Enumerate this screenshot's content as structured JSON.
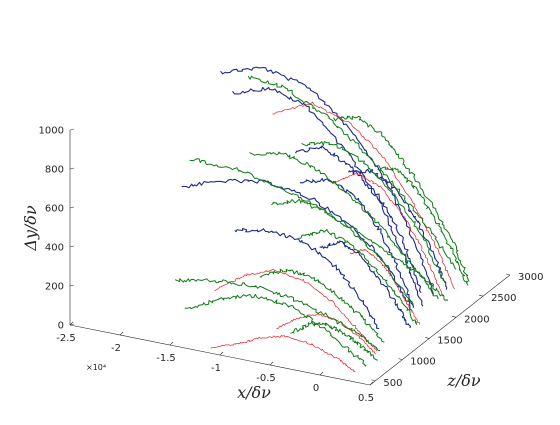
{
  "chart_data": {
    "type": "line",
    "view": "3d",
    "title": "",
    "xlabel": "x/δν",
    "ylabel": "Δy/δν",
    "zlabel": "z/δν",
    "x_multiplier_label": "×10⁴",
    "x_ticks": [
      "-2.5",
      "-2",
      "-1.5",
      "-1",
      "-0.5",
      "0",
      "0.5"
    ],
    "y_ticks": [
      "0",
      "200",
      "400",
      "600",
      "800",
      "1000"
    ],
    "z_ticks": [
      "500",
      "1000",
      "1500",
      "2000",
      "2500",
      "3000"
    ],
    "xlim": [
      -25000,
      5000
    ],
    "ylim": [
      0,
      1000
    ],
    "zlim": [
      400,
      3000
    ],
    "grid": false,
    "colors": {
      "blue_series": "#1c2a8c",
      "red_series": "#e0202a",
      "green_series": "#0e7d14"
    },
    "series": [
      {
        "color": "blue",
        "x": [
          -20500,
          -16000,
          -11000,
          -6500,
          -2500,
          500,
          2500
        ],
        "y": [
          920,
          1000,
          960,
          800,
          560,
          300,
          80
        ],
        "z": [
          2350,
          2300,
          2250,
          2200,
          2150,
          2100,
          2050
        ]
      },
      {
        "color": "blue",
        "x": [
          -17500,
          -13500,
          -9500,
          -5500,
          -2000,
          600,
          2600
        ],
        "y": [
          920,
          990,
          940,
          760,
          540,
          290,
          70
        ],
        "z": [
          2000,
          1980,
          1950,
          1920,
          1890,
          1860,
          1830
        ]
      },
      {
        "color": "blue",
        "x": [
          -21500,
          -17000,
          -12500,
          -8000,
          -4000,
          -500,
          2000
        ],
        "y": [
          440,
          520,
          560,
          520,
          420,
          260,
          60
        ],
        "z": [
          1800,
          1790,
          1780,
          1770,
          1760,
          1750,
          1740
        ]
      },
      {
        "color": "blue",
        "x": [
          -12000,
          -9000,
          -6000,
          -3000,
          -500,
          1500
        ],
        "y": [
          640,
          700,
          640,
          520,
          340,
          90
        ],
        "z": [
          2150,
          2120,
          2090,
          2060,
          2030,
          2000
        ]
      },
      {
        "color": "blue",
        "x": [
          -10000,
          -7000,
          -4500,
          -2000,
          0,
          1800
        ],
        "y": [
          560,
          610,
          560,
          430,
          260,
          60
        ],
        "z": [
          1900,
          1880,
          1860,
          1840,
          1820,
          1800
        ]
      },
      {
        "color": "blue",
        "x": [
          -14000,
          -10500,
          -7000,
          -4000,
          -1500,
          800
        ],
        "y": [
          380,
          420,
          400,
          320,
          200,
          40
        ],
        "z": [
          1400,
          1390,
          1380,
          1370,
          1360,
          1350
        ]
      },
      {
        "color": "blue",
        "x": [
          -8000,
          -5500,
          -3000,
          -1000,
          1000,
          2400
        ],
        "y": [
          520,
          560,
          500,
          380,
          220,
          50
        ],
        "z": [
          2400,
          2380,
          2360,
          2340,
          2320,
          2300
        ]
      },
      {
        "color": "blue",
        "x": [
          -6500,
          -4500,
          -2500,
          -500,
          1500,
          2800
        ],
        "y": [
          320,
          380,
          340,
          240,
          120,
          20
        ],
        "z": [
          1600,
          1590,
          1580,
          1570,
          1560,
          1550
        ]
      },
      {
        "color": "red",
        "x": [
          -16000,
          -12000,
          -8000,
          -4500,
          -1500,
          1000,
          2800
        ],
        "y": [
          720,
          820,
          760,
          620,
          420,
          220,
          40
        ],
        "z": [
          2500,
          2480,
          2460,
          2440,
          2420,
          2400,
          2380
        ]
      },
      {
        "color": "red",
        "x": [
          -14000,
          -11000,
          -8000,
          -5000,
          -2000,
          500,
          2500
        ],
        "y": [
          150,
          260,
          320,
          300,
          220,
          110,
          20
        ],
        "z": [
          1050,
          1040,
          1030,
          1020,
          1010,
          1000,
          990
        ]
      },
      {
        "color": "red",
        "x": [
          -11500,
          -9000,
          -6500,
          -4000,
          -1500,
          1000,
          2700
        ],
        "y": [
          0,
          40,
          100,
          130,
          110,
          60,
          10
        ],
        "z": [
          500,
          510,
          520,
          530,
          540,
          550,
          560
        ]
      },
      {
        "color": "red",
        "x": [
          -9000,
          -6500,
          -4000,
          -1500,
          800,
          2600
        ],
        "y": [
          480,
          560,
          520,
          400,
          220,
          40
        ],
        "z": [
          2300,
          2280,
          2260,
          2240,
          2220,
          2200
        ]
      },
      {
        "color": "red",
        "x": [
          -7000,
          -5000,
          -3000,
          -1000,
          1000,
          2600
        ],
        "y": [
          60,
          130,
          170,
          150,
          90,
          15
        ],
        "z": [
          900,
          910,
          920,
          930,
          940,
          950
        ]
      },
      {
        "color": "red",
        "x": [
          -4000,
          -2500,
          -1000,
          500,
          2000,
          3200
        ],
        "y": [
          300,
          340,
          300,
          220,
          110,
          20
        ],
        "z": [
          1700,
          1690,
          1680,
          1670,
          1660,
          1650
        ]
      },
      {
        "color": "green",
        "x": [
          -24500,
          -20000,
          -15500,
          -11000,
          -6500,
          -2500,
          1000,
          3000
        ],
        "y": [
          390,
          400,
          370,
          310,
          240,
          160,
          80,
          20
        ],
        "z": [
          2550,
          2500,
          2450,
          2400,
          2350,
          2300,
          2250,
          2200
        ]
      },
      {
        "color": "green",
        "x": [
          -21000,
          -17000,
          -13000,
          -9000,
          -5000,
          -1500,
          1500
        ],
        "y": [
          760,
          760,
          680,
          560,
          400,
          240,
          70
        ],
        "z": [
          2950,
          2900,
          2850,
          2800,
          2750,
          2700,
          2650
        ]
      },
      {
        "color": "green",
        "x": [
          -17000,
          -13500,
          -10000,
          -6500,
          -3000,
          0,
          2500
        ],
        "y": [
          560,
          600,
          560,
          460,
          320,
          170,
          40
        ],
        "z": [
          2250,
          2230,
          2210,
          2190,
          2170,
          2150,
          2130
        ]
      },
      {
        "color": "green",
        "x": [
          -19500,
          -15500,
          -11500,
          -7500,
          -3500,
          0,
          2500
        ],
        "y": [
          80,
          130,
          160,
          150,
          110,
          60,
          10
        ],
        "z": [
          1350,
          1300,
          1250,
          1200,
          1150,
          1100,
          1050
        ]
      },
      {
        "color": "green",
        "x": [
          -15000,
          -11500,
          -8000,
          -4500,
          -1500,
          1200,
          3000
        ],
        "y": [
          120,
          210,
          260,
          240,
          170,
          80,
          15
        ],
        "z": [
          700,
          700,
          700,
          700,
          700,
          700,
          700
        ]
      },
      {
        "color": "green",
        "x": [
          -12500,
          -9500,
          -6500,
          -3500,
          -500,
          2000
        ],
        "y": [
          620,
          660,
          600,
          480,
          300,
          70
        ],
        "z": [
          2400,
          2390,
          2380,
          2370,
          2360,
          2350
        ]
      },
      {
        "color": "green",
        "x": [
          -13000,
          -10000,
          -7000,
          -4000,
          -1000,
          1800
        ],
        "y": [
          420,
          470,
          440,
          360,
          240,
          60
        ],
        "z": [
          1900,
          1880,
          1860,
          1840,
          1820,
          1800
        ]
      },
      {
        "color": "green",
        "x": [
          -10000,
          -7500,
          -5000,
          -2500,
          0,
          2400
        ],
        "y": [
          240,
          300,
          290,
          230,
          140,
          30
        ],
        "z": [
          1150,
          1150,
          1150,
          1150,
          1150,
          1150
        ]
      },
      {
        "color": "green",
        "x": [
          -8500,
          -6000,
          -3500,
          -1000,
          1500,
          3200
        ],
        "y": [
          360,
          420,
          380,
          280,
          150,
          30
        ],
        "z": [
          1600,
          1600,
          1600,
          1600,
          1600,
          1600
        ]
      },
      {
        "color": "green",
        "x": [
          -6000,
          -4000,
          -2000,
          0,
          2000,
          3500
        ],
        "y": [
          520,
          540,
          460,
          340,
          180,
          40
        ],
        "z": [
          2600,
          2580,
          2560,
          2540,
          2520,
          2500
        ]
      },
      {
        "color": "green",
        "x": [
          -5000,
          -3200,
          -1500,
          200,
          1900,
          3300
        ],
        "y": [
          80,
          140,
          150,
          120,
          70,
          10
        ],
        "z": [
          800,
          810,
          820,
          830,
          840,
          850
        ]
      },
      {
        "color": "green",
        "x": [
          -11000,
          -8500,
          -6000,
          -3500,
          -1000,
          1500,
          3200
        ],
        "y": [
          700,
          740,
          680,
          560,
          400,
          220,
          40
        ],
        "z": [
          2700,
          2680,
          2660,
          2640,
          2620,
          2600,
          2580
        ]
      }
    ]
  }
}
